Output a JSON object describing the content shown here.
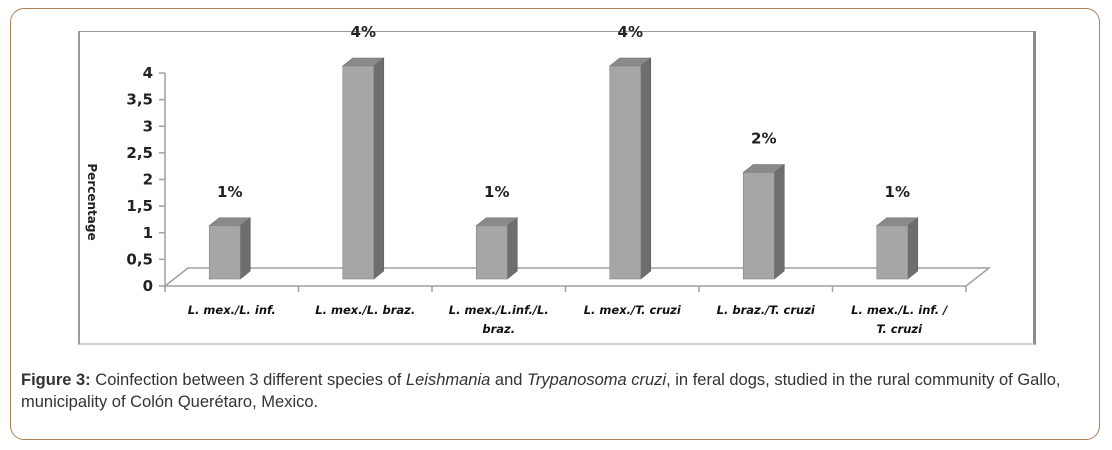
{
  "chart_data": {
    "type": "bar",
    "style": "3d-column",
    "title": "",
    "xlabel": "",
    "ylabel": "Percentage",
    "ylim": [
      0,
      4
    ],
    "yticks": [
      0,
      0.5,
      1,
      1.5,
      2,
      2.5,
      3,
      3.5,
      4
    ],
    "ytick_labels": [
      "0",
      "0,5",
      "1",
      "1,5",
      "2",
      "2,5",
      "3",
      "3,5",
      "4"
    ],
    "categories": [
      [
        "L. mex./L. inf."
      ],
      [
        "L. mex./L. braz."
      ],
      [
        "L. mex./L.inf./L.",
        "braz."
      ],
      [
        "L. mex./T. cruzi"
      ],
      [
        "L. braz./T. cruzi"
      ],
      [
        "L. mex./L. inf. /",
        "T. cruzi"
      ]
    ],
    "values": [
      1,
      4,
      1,
      4,
      2,
      1
    ],
    "data_labels": [
      "1%",
      "4%",
      "1%",
      "4%",
      "2%",
      "1%"
    ],
    "grid": false,
    "legend": "none",
    "colors": {
      "bar_front": "#a6a6a6",
      "bar_side": "#6e6e6e",
      "bar_top": "#8a8a8a",
      "axis": "#a0a0a0"
    }
  },
  "caption": {
    "label": "Figure 3:",
    "parts": [
      {
        "text": " Coinfection between 3 different species of ",
        "italic": false
      },
      {
        "text": "Leishmania",
        "italic": true
      },
      {
        "text": " and ",
        "italic": false
      },
      {
        "text": "Trypanosoma cruzi",
        "italic": true
      },
      {
        "text": ", in feral dogs, studied in the rural community of Gallo, municipality of Colón Querétaro, Mexico.",
        "italic": false
      }
    ]
  },
  "colors": {
    "border": "#b0805a",
    "caption_text": "#333333"
  }
}
